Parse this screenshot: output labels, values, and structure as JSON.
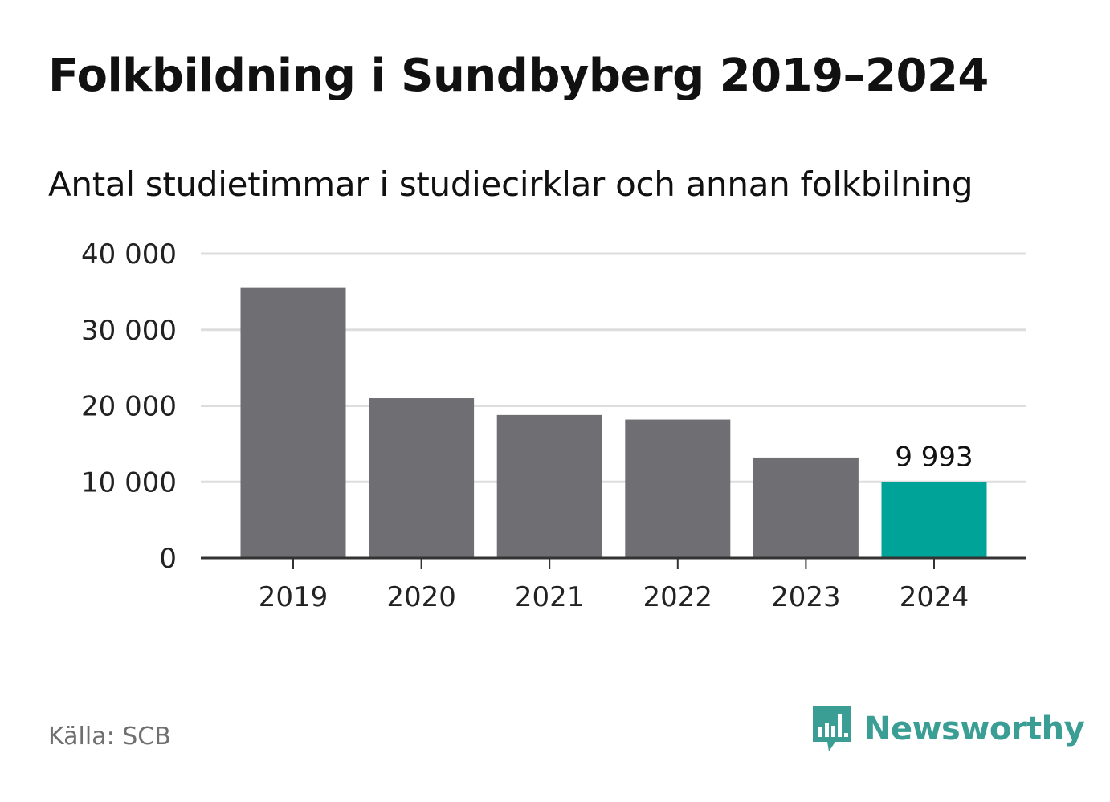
{
  "header": {
    "title": "Folkbildning i Sundbyberg 2019–2024",
    "subtitle": "Antal studietimmar i studiecirklar och annan folkbilning"
  },
  "footer": {
    "source": "Källa: SCB",
    "brand": "Newsworthy",
    "brand_icon": "newsworthy-logo-icon",
    "brand_color": "#3a9e95"
  },
  "chart_data": {
    "type": "bar",
    "categories": [
      "2019",
      "2020",
      "2021",
      "2022",
      "2023",
      "2024"
    ],
    "values": [
      35500,
      21000,
      18800,
      18200,
      13200,
      9993
    ],
    "highlight_index": 5,
    "highlight_label": "9 993",
    "ylim": [
      0,
      40000
    ],
    "yticks": [
      0,
      10000,
      20000,
      30000,
      40000
    ],
    "ytick_labels": [
      "0",
      "10 000",
      "20 000",
      "30 000",
      "40 000"
    ],
    "xlabel": "",
    "ylabel": "",
    "grid": true,
    "colors": {
      "bar": "#6f6e73",
      "highlight": "#00a398",
      "grid": "#dddddd",
      "axis": "#333333"
    }
  }
}
